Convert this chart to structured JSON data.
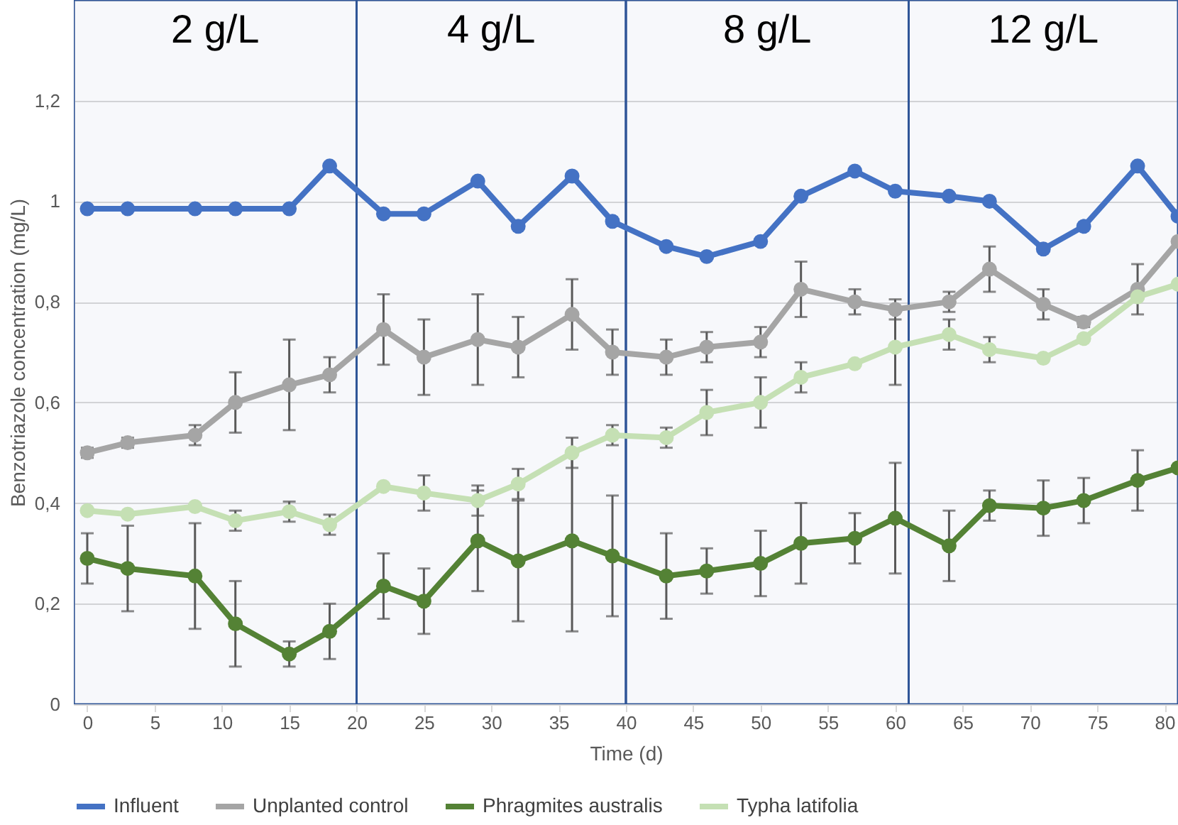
{
  "chart_data": {
    "type": "line",
    "xlabel": "Time (d)",
    "ylabel": "Benzotriazole concentration (mg/L)",
    "x": [
      0,
      3,
      8,
      11,
      15,
      18,
      22,
      25,
      29,
      32,
      36,
      39,
      43,
      46,
      50,
      53,
      57,
      60,
      64,
      67,
      71,
      74,
      78,
      81
    ],
    "series": [
      {
        "name": "Influent",
        "color": "#4472c4",
        "values": [
          0.985,
          0.985,
          0.985,
          0.985,
          0.985,
          1.07,
          0.975,
          0.975,
          1.04,
          0.95,
          1.05,
          0.96,
          0.91,
          0.89,
          0.92,
          1.01,
          1.06,
          1.02,
          1.01,
          1.0,
          0.905,
          0.95,
          1.07,
          0.97
        ]
      },
      {
        "name": "Unplanted control",
        "color": "#a5a5a5",
        "values": [
          0.5,
          0.52,
          0.535,
          0.6,
          0.635,
          0.655,
          0.745,
          0.69,
          0.725,
          0.71,
          0.775,
          0.7,
          0.69,
          0.71,
          0.72,
          0.825,
          0.8,
          0.785,
          0.8,
          0.865,
          0.795,
          0.76,
          0.825,
          0.92
        ],
        "errors": [
          0.01,
          0.01,
          0.02,
          0.06,
          0.09,
          0.035,
          0.07,
          0.075,
          0.09,
          0.06,
          0.07,
          0.045,
          0.035,
          0.03,
          0.03,
          0.055,
          0.025,
          0.02,
          0.02,
          0.045,
          0.03,
          0.01,
          0.05,
          null
        ]
      },
      {
        "name": "Phragmites australis",
        "color": "#548235",
        "values": [
          0.29,
          0.27,
          0.255,
          0.16,
          0.1,
          0.145,
          0.235,
          0.205,
          0.325,
          0.285,
          0.325,
          0.295,
          0.255,
          0.265,
          0.28,
          0.32,
          0.33,
          0.37,
          0.315,
          0.395,
          0.39,
          0.405,
          0.445,
          0.47
        ],
        "errors": [
          0.05,
          0.085,
          0.105,
          0.085,
          0.025,
          0.055,
          0.065,
          0.065,
          0.1,
          0.12,
          0.18,
          0.12,
          0.085,
          0.045,
          0.065,
          0.08,
          0.05,
          0.11,
          0.07,
          0.03,
          0.055,
          0.045,
          0.06,
          null
        ]
      },
      {
        "name": "Typha latifolia",
        "color": "#c5e0b4",
        "values": [
          0.385,
          0.378,
          0.393,
          0.365,
          0.383,
          0.357,
          0.433,
          0.42,
          0.405,
          0.438,
          0.5,
          0.535,
          0.53,
          0.58,
          0.6,
          0.65,
          0.677,
          0.71,
          0.735,
          0.705,
          0.688,
          0.727,
          0.81,
          0.835
        ],
        "errors": [
          null,
          null,
          null,
          0.02,
          0.02,
          0.02,
          null,
          0.035,
          0.03,
          0.03,
          0.03,
          0.02,
          0.02,
          0.045,
          0.05,
          0.03,
          null,
          0.075,
          0.03,
          0.025,
          null,
          null,
          null,
          null
        ]
      }
    ],
    "xlim": [
      -1,
      81
    ],
    "xticks": [
      0,
      5,
      10,
      15,
      20,
      25,
      30,
      35,
      40,
      45,
      50,
      55,
      60,
      65,
      70,
      75,
      80
    ],
    "ylim": [
      0,
      1.4
    ],
    "yticks": [
      0,
      {
        "value": 0.2,
        "label": "0,2"
      },
      {
        "value": 0.4,
        "label": "0,4"
      },
      {
        "value": 0.6,
        "label": "0,6"
      },
      {
        "value": 0.8,
        "label": "0,8"
      },
      1,
      {
        "value": 1.2,
        "label": "1,2"
      }
    ],
    "bands": [
      {
        "axis": "x",
        "from": -1,
        "to": 20,
        "label": "2 g/L",
        "color": "#2f5597"
      },
      {
        "axis": "x",
        "from": 20,
        "to": 40,
        "label": "4 g/L",
        "color": "#2f5597"
      },
      {
        "axis": "x",
        "from": 40,
        "to": 61,
        "label": "8 g/L",
        "color": "#2f5597"
      },
      {
        "axis": "x",
        "from": 61,
        "to": 81,
        "label": "12 g/L",
        "color": "#2f5597"
      }
    ],
    "grid": "y",
    "legend": "bottom",
    "marker": "circle",
    "line_style": "solid"
  }
}
